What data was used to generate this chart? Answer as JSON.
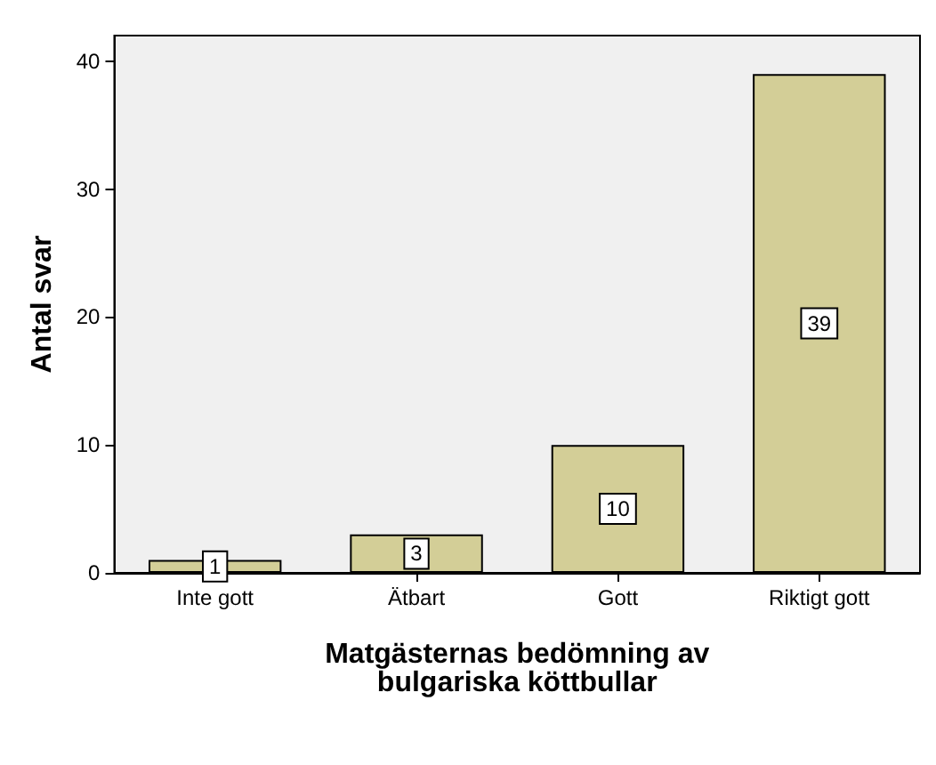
{
  "chart_data": {
    "type": "bar",
    "xlabel": "Matgästernas bedömning av\nbulgariska köttbullar",
    "ylabel": "Antal svar",
    "categories": [
      "Inte gott",
      "Ätbart",
      "Gott",
      "Riktigt gott"
    ],
    "values": [
      1,
      3,
      10,
      39
    ],
    "color": "#d3ce97",
    "ylim": [
      0,
      42
    ],
    "yticks": [
      0,
      10,
      20,
      30,
      40
    ],
    "grid": false,
    "data_labels": true
  }
}
